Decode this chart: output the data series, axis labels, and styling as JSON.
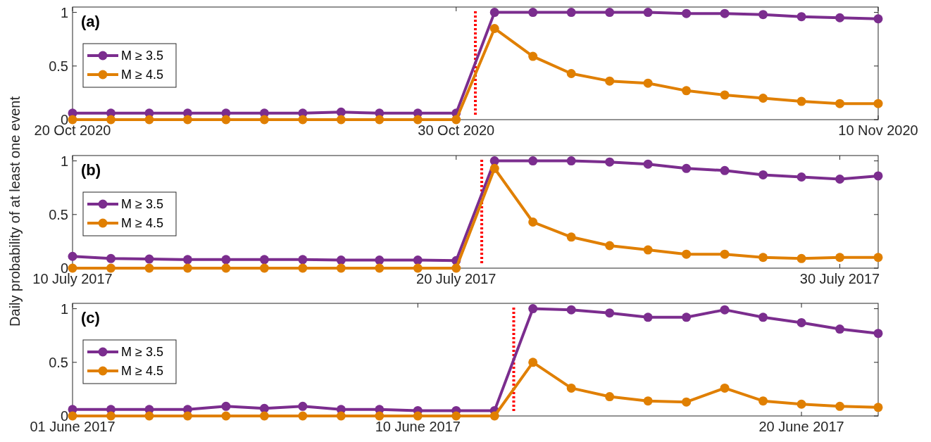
{
  "chart_data": [
    {
      "type": "line",
      "title": "(a)",
      "x": [
        "2020-10-20",
        "2020-10-21",
        "2020-10-22",
        "2020-10-23",
        "2020-10-24",
        "2020-10-25",
        "2020-10-26",
        "2020-10-27",
        "2020-10-28",
        "2020-10-29",
        "2020-10-30",
        "2020-10-31",
        "2020-11-01",
        "2020-11-02",
        "2020-11-03",
        "2020-11-04",
        "2020-11-05",
        "2020-11-06",
        "2020-11-07",
        "2020-11-08",
        "2020-11-09",
        "2020-11-10"
      ],
      "series": [
        {
          "name": "M ≥ 3.5",
          "color": "#7b2d8e",
          "values": [
            0.06,
            0.06,
            0.06,
            0.06,
            0.06,
            0.06,
            0.06,
            0.07,
            0.06,
            0.06,
            0.06,
            1,
            1,
            1,
            1,
            1,
            0.99,
            0.99,
            0.98,
            0.96,
            0.95,
            0.94
          ]
        },
        {
          "name": "M ≥ 4.5",
          "color": "#e07f00",
          "values": [
            0,
            0,
            0,
            0,
            0,
            0,
            0,
            0,
            0,
            0,
            0,
            0.85,
            0.59,
            0.43,
            0.36,
            0.34,
            0.27,
            0.23,
            0.2,
            0.17,
            0.15,
            0.15
          ]
        }
      ],
      "xlim": [
        "2020-10-20",
        "2020-11-10"
      ],
      "xticks": [
        {
          "value": "2020-10-20",
          "label": "20 Oct 2020"
        },
        {
          "value": "2020-10-30",
          "label": "30 Oct 2020"
        },
        {
          "value": "2020-11-10",
          "label": "10 Nov 2020"
        }
      ],
      "ylim": [
        0,
        1.05
      ],
      "yticks": [
        0,
        0.5,
        1
      ],
      "marker": "circle",
      "legend": "left",
      "ref_lines": [
        {
          "axis": "x",
          "value": "2020-10-30T12:00",
          "color": "#ff0000",
          "line_style": "dotted"
        }
      ]
    },
    {
      "type": "line",
      "title": "(b)",
      "ylabel": "Daily probability of at least one event",
      "x": [
        "2017-07-10",
        "2017-07-11",
        "2017-07-12",
        "2017-07-13",
        "2017-07-14",
        "2017-07-15",
        "2017-07-16",
        "2017-07-17",
        "2017-07-18",
        "2017-07-19",
        "2017-07-20",
        "2017-07-21",
        "2017-07-22",
        "2017-07-23",
        "2017-07-24",
        "2017-07-25",
        "2017-07-26",
        "2017-07-27",
        "2017-07-28",
        "2017-07-29",
        "2017-07-30",
        "2017-07-31"
      ],
      "series": [
        {
          "name": "M ≥ 3.5",
          "color": "#7b2d8e",
          "values": [
            0.11,
            0.09,
            0.085,
            0.08,
            0.08,
            0.08,
            0.08,
            0.075,
            0.075,
            0.075,
            0.07,
            1,
            1,
            1,
            0.99,
            0.97,
            0.93,
            0.91,
            0.87,
            0.85,
            0.83,
            0.86
          ]
        },
        {
          "name": "M ≥ 4.5",
          "color": "#e07f00",
          "values": [
            0,
            0,
            0,
            0,
            0,
            0,
            0,
            0,
            0,
            0,
            0,
            0.93,
            0.43,
            0.29,
            0.21,
            0.17,
            0.13,
            0.13,
            0.1,
            0.09,
            0.1,
            0.1
          ]
        }
      ],
      "xlim": [
        "2017-07-10",
        "2017-07-31"
      ],
      "xticks": [
        {
          "value": "2017-07-10",
          "label": "10 July 2017"
        },
        {
          "value": "2017-07-20",
          "label": "20 July 2017"
        },
        {
          "value": "2017-07-30",
          "label": "30 July 2017"
        }
      ],
      "ylim": [
        0,
        1.05
      ],
      "yticks": [
        0,
        0.5,
        1
      ],
      "marker": "circle",
      "legend": "left",
      "ref_lines": [
        {
          "axis": "x",
          "value": "2017-07-20T16:00",
          "color": "#ff0000",
          "line_style": "dotted"
        }
      ]
    },
    {
      "type": "line",
      "title": "(c)",
      "x": [
        "2017-06-01",
        "2017-06-02",
        "2017-06-03",
        "2017-06-04",
        "2017-06-05",
        "2017-06-06",
        "2017-06-07",
        "2017-06-08",
        "2017-06-09",
        "2017-06-10",
        "2017-06-11",
        "2017-06-12",
        "2017-06-13",
        "2017-06-14",
        "2017-06-15",
        "2017-06-16",
        "2017-06-17",
        "2017-06-18",
        "2017-06-19",
        "2017-06-20",
        "2017-06-21",
        "2017-06-22"
      ],
      "series": [
        {
          "name": "M ≥ 3.5",
          "color": "#7b2d8e",
          "values": [
            0.06,
            0.06,
            0.06,
            0.06,
            0.09,
            0.07,
            0.09,
            0.06,
            0.06,
            0.05,
            0.05,
            0.05,
            1,
            0.99,
            0.96,
            0.92,
            0.92,
            0.99,
            0.92,
            0.87,
            0.81,
            0.77
          ]
        },
        {
          "name": "M ≥ 4.5",
          "color": "#e07f00",
          "values": [
            0,
            0,
            0,
            0,
            0,
            0,
            0,
            0,
            0,
            0,
            0,
            0,
            0.5,
            0.26,
            0.18,
            0.14,
            0.13,
            0.26,
            0.14,
            0.11,
            0.09,
            0.08
          ]
        }
      ],
      "xlim": [
        "2017-06-01",
        "2017-06-22"
      ],
      "xticks": [
        {
          "value": "2017-06-01",
          "label": "01 June 2017"
        },
        {
          "value": "2017-06-10",
          "label": "10 June 2017"
        },
        {
          "value": "2017-06-20",
          "label": "20 June 2017"
        }
      ],
      "ylim": [
        0,
        1.05
      ],
      "yticks": [
        0,
        0.5,
        1
      ],
      "marker": "circle",
      "legend": "left",
      "ref_lines": [
        {
          "axis": "x",
          "value": "2017-06-12T12:00",
          "color": "#ff0000",
          "line_style": "dotted"
        }
      ]
    }
  ]
}
